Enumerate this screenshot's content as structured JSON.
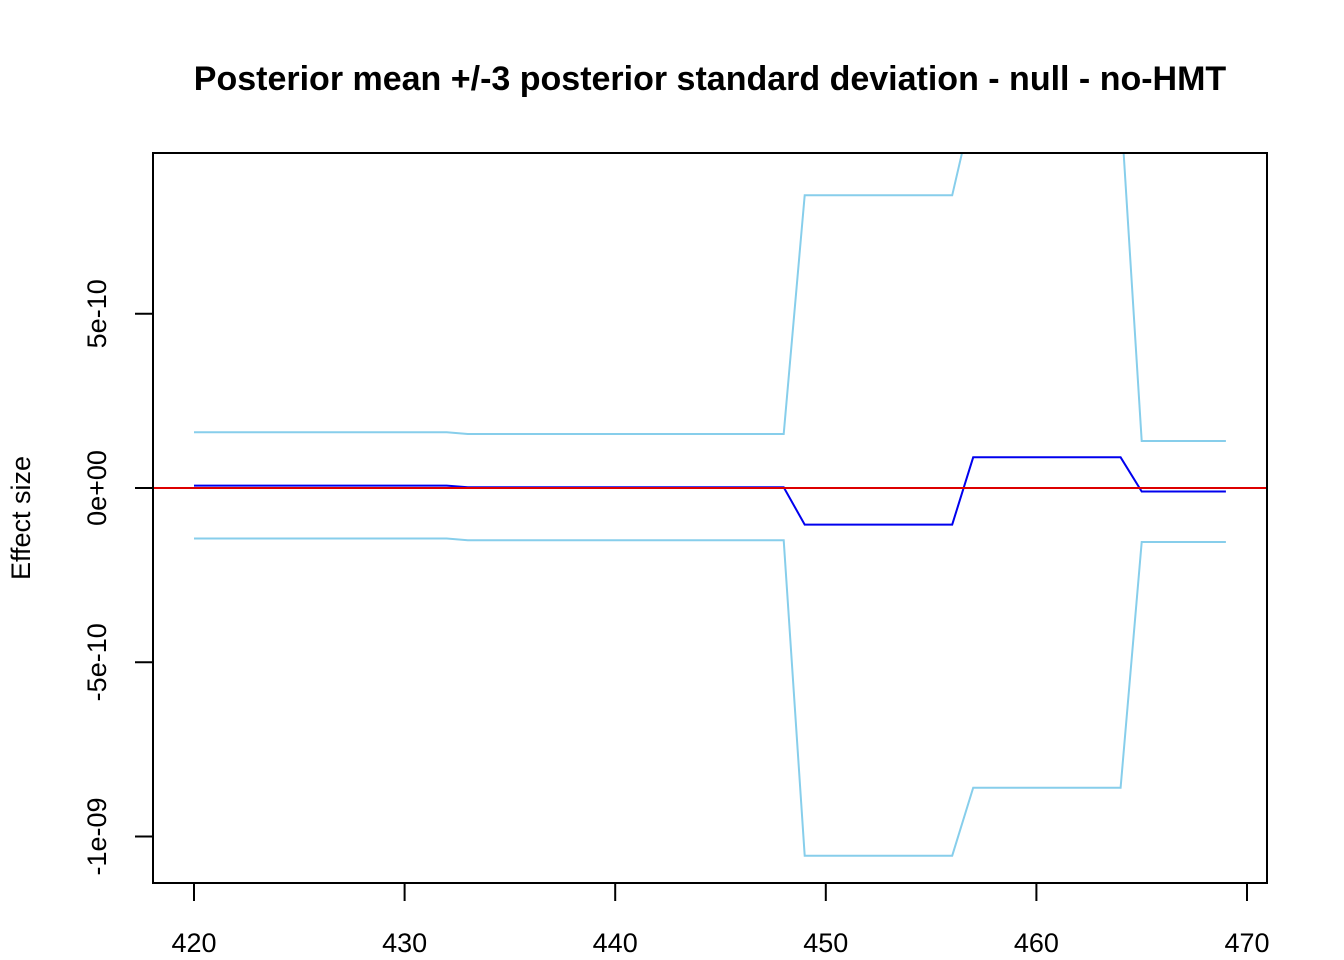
{
  "chart_data": {
    "type": "line",
    "title": "Posterior mean +/-3 posterior standard deviation - null - no-HMT",
    "xlabel": "",
    "ylabel": "Effect size",
    "xlim": [
      418,
      471
    ],
    "ylim": [
      -1.13e-09,
      9.6e-10
    ],
    "x_ticks": [
      420,
      430,
      440,
      450,
      460,
      470
    ],
    "x_tick_labels": [
      "420",
      "430",
      "440",
      "450",
      "460",
      "470"
    ],
    "y_ticks": [
      -1e-09,
      -5e-10,
      0,
      5e-10
    ],
    "y_tick_labels": [
      "-1e-09",
      "-5e-10",
      "0e+00",
      "5e-10"
    ],
    "reference_line": {
      "y": 0,
      "color": "#dd0000"
    },
    "colors": {
      "mean": "#0000ee",
      "band": "#87ceeb",
      "reference": "#dd0000"
    },
    "series": [
      {
        "role": "upper",
        "color": "#87ceeb",
        "x": [
          420,
          432,
          433,
          448,
          449,
          456,
          457,
          464,
          465,
          469
        ],
        "y": [
          1.6e-10,
          1.6e-10,
          1.55e-10,
          1.55e-10,
          8.4e-10,
          8.4e-10,
          1.1e-09,
          1.1e-09,
          1.35e-10,
          1.35e-10
        ]
      },
      {
        "role": "mean",
        "color": "#0000ee",
        "x": [
          420,
          432,
          433,
          448,
          449,
          456,
          457,
          464,
          465,
          469
        ],
        "y": [
          7e-12,
          7e-12,
          2e-12,
          2e-12,
          -1.05e-10,
          -1.05e-10,
          8.8e-11,
          8.8e-11,
          -1e-11,
          -1e-11
        ]
      },
      {
        "role": "lower",
        "color": "#87ceeb",
        "x": [
          420,
          432,
          433,
          448,
          449,
          456,
          457,
          464,
          465,
          469
        ],
        "y": [
          -1.45e-10,
          -1.45e-10,
          -1.5e-10,
          -1.5e-10,
          -1.055e-09,
          -1.055e-09,
          -8.6e-10,
          -8.6e-10,
          -1.55e-10,
          -1.55e-10
        ]
      }
    ]
  }
}
